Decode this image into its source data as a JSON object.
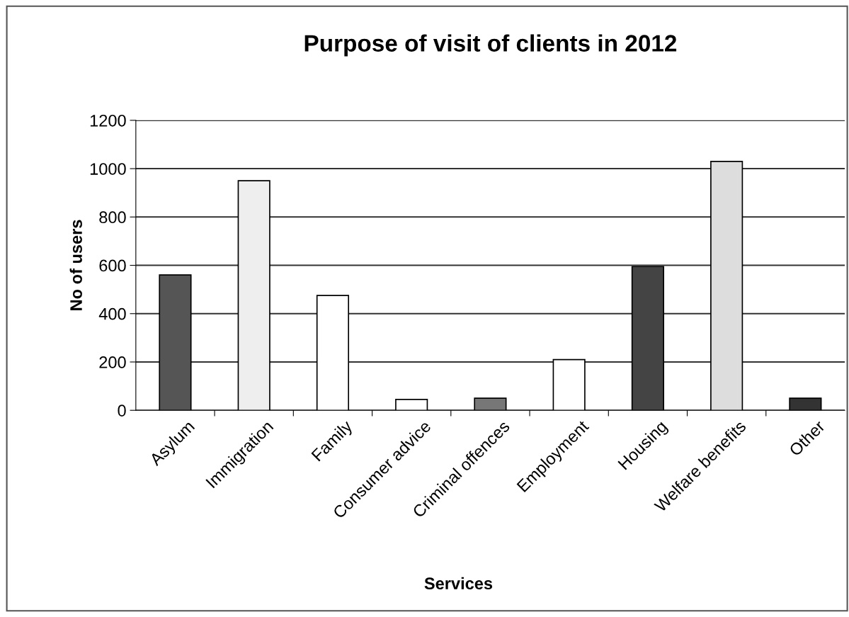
{
  "chart_data": {
    "type": "bar",
    "title": "Purpose of visit of clients in 2012",
    "xlabel": "Services",
    "ylabel": "No of users",
    "categories": [
      "Asylum",
      "Immigration",
      "Family",
      "Consumer advice",
      "Criminal offences",
      "Employment",
      "Housing",
      "Welfare benefits",
      "Other"
    ],
    "values": [
      560,
      950,
      475,
      45,
      50,
      210,
      595,
      1030,
      50
    ],
    "colors": [
      "#555555",
      "#eeeeee",
      "#ffffff",
      "#ffffff",
      "#777777",
      "#ffffff",
      "#444444",
      "#dddddd",
      "#333333"
    ],
    "ylim": [
      0,
      1200
    ],
    "yticks": [
      0,
      200,
      400,
      600,
      800,
      1000,
      1200
    ],
    "grid": "y",
    "legend": false
  }
}
